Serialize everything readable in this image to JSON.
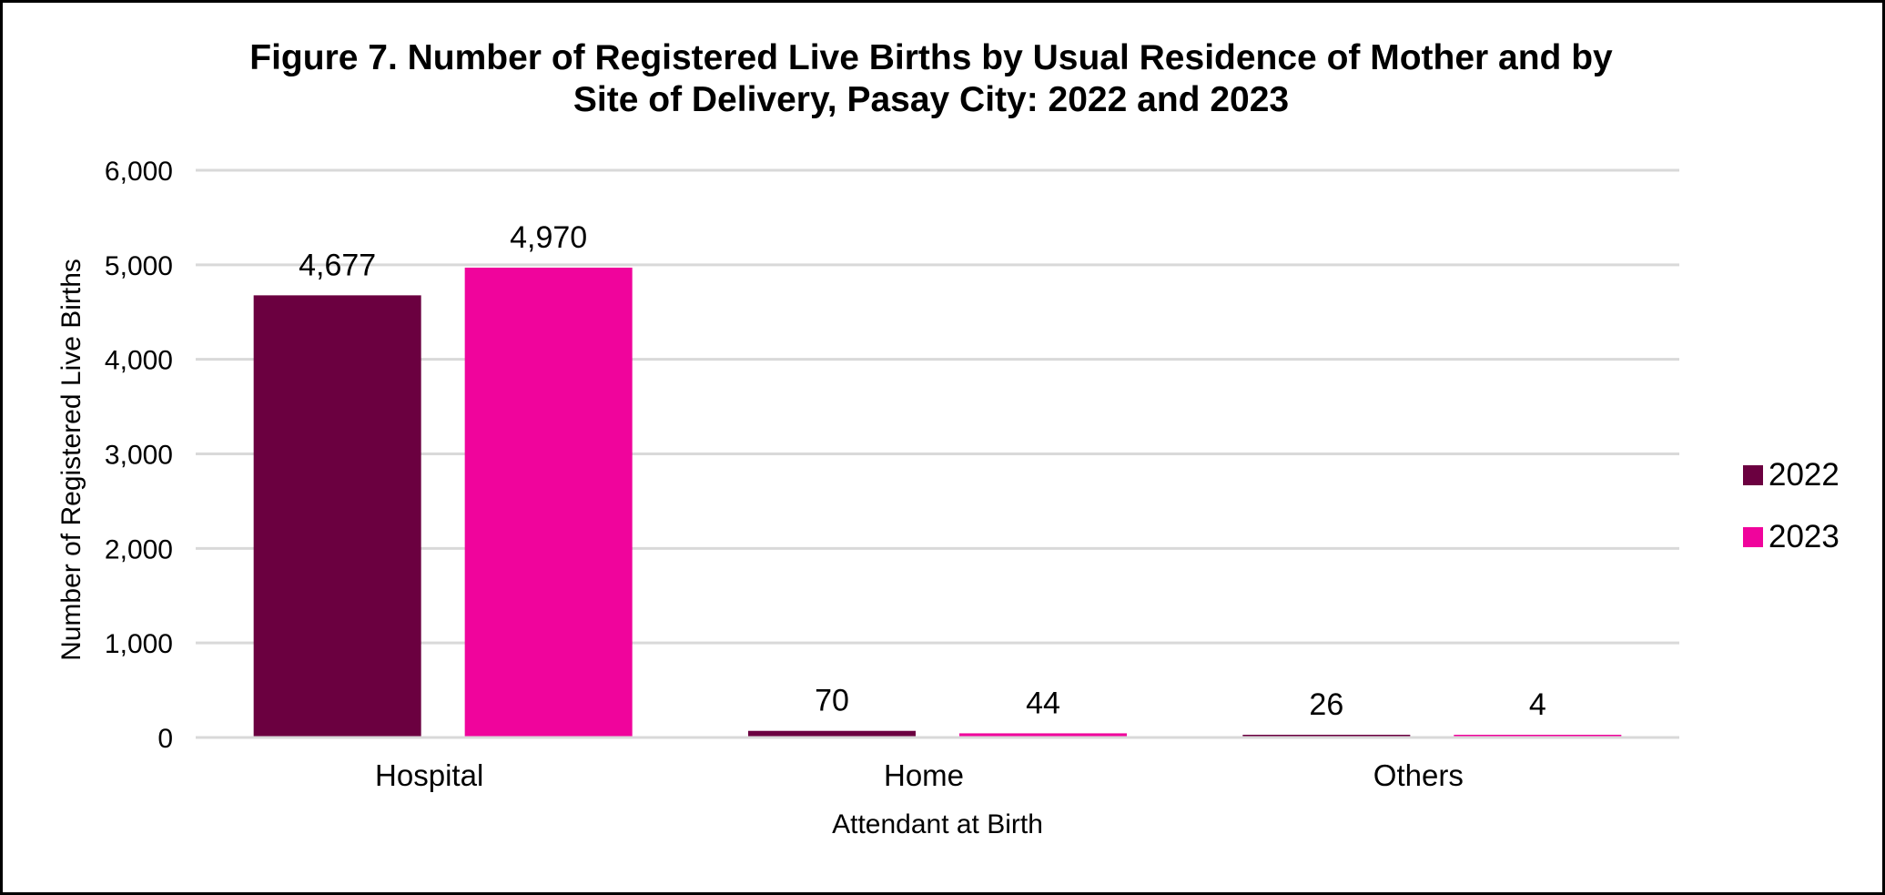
{
  "chart_data": {
    "type": "bar",
    "title_lines": [
      "Figure 7. Number of Registered Live Births by Usual Residence of Mother and by",
      "Site of Delivery, Pasay City: 2022 and 2023"
    ],
    "xlabel": "Attendant at Birth",
    "ylabel": "Number of Registered Live Births",
    "categories": [
      "Hospital",
      "Home",
      "Others"
    ],
    "series": [
      {
        "name": "2022",
        "color": "#6b0040",
        "values": [
          4677,
          70,
          26
        ],
        "labels": [
          "4,677",
          "70",
          "26"
        ]
      },
      {
        "name": "2023",
        "color": "#f0049c",
        "values": [
          4970,
          44,
          4
        ],
        "labels": [
          "4,970",
          "44",
          "4"
        ]
      }
    ],
    "ylim": [
      0,
      6000
    ],
    "yticks": [
      0,
      1000,
      2000,
      3000,
      4000,
      5000,
      6000
    ],
    "ytick_labels": [
      "0",
      "1,000",
      "2,000",
      "3,000",
      "4,000",
      "5,000",
      "6,000"
    ],
    "grid": true,
    "legend_position": "right"
  }
}
